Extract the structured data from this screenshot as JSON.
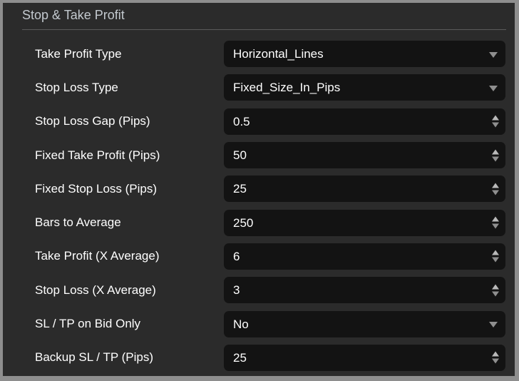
{
  "panel": {
    "title": "Stop & Take Profit"
  },
  "colors": {
    "panel_background": "#2b2b2b",
    "field_background": "#131313",
    "window_border": "#8e8e8e",
    "header_text": "#c3c9cf",
    "label_text": "#ffffff",
    "divider": "#5a5a5a",
    "arrow": "#8f8f8f"
  },
  "rows": [
    {
      "label": "Take Profit Type",
      "value": "Horizontal_Lines",
      "type": "dropdown"
    },
    {
      "label": "Stop Loss Type",
      "value": "Fixed_Size_In_Pips",
      "type": "dropdown"
    },
    {
      "label": "Stop Loss Gap (Pips)",
      "value": "0.5",
      "type": "stepper"
    },
    {
      "label": "Fixed Take Profit (Pips)",
      "value": "50",
      "type": "stepper"
    },
    {
      "label": "Fixed Stop Loss (Pips)",
      "value": "25",
      "type": "stepper"
    },
    {
      "label": "Bars to Average",
      "value": "250",
      "type": "stepper"
    },
    {
      "label": "Take Profit (X Average)",
      "value": "6",
      "type": "stepper"
    },
    {
      "label": "Stop Loss (X Average)",
      "value": "3",
      "type": "stepper"
    },
    {
      "label": "SL / TP on Bid Only",
      "value": "No",
      "type": "dropdown"
    },
    {
      "label": "Backup SL / TP (Pips)",
      "value": "25",
      "type": "stepper"
    }
  ]
}
